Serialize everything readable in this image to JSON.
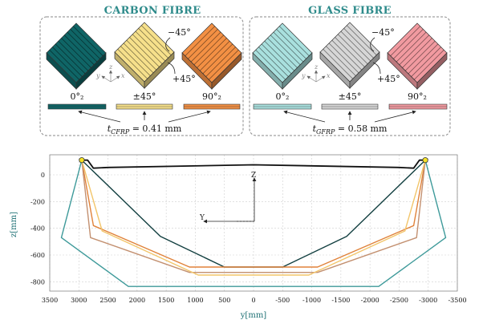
{
  "carbon": {
    "title": "CARBON FIBRE",
    "ply_labels": [
      "0°₂",
      "±45°",
      "90°₂"
    ],
    "angle_minus": "−45°",
    "angle_plus": "+45°",
    "thickness": "t",
    "thickness_sub": "CFRP",
    "thickness_value": " = 0.41 mm",
    "colors": [
      "#0f6566",
      "#f6e08b",
      "#f39044"
    ]
  },
  "glass": {
    "title": "GLASS FIBRE",
    "ply_labels": [
      "0°₂",
      "±45°",
      "90°₂"
    ],
    "angle_minus": "−45°",
    "angle_plus": "+45°",
    "thickness": "t",
    "thickness_sub": "GFRP",
    "thickness_value": " = 0.58 mm",
    "colors": [
      "#a9e0de",
      "#d6d6d6",
      "#f19aa0"
    ]
  },
  "triad": {
    "y": "y",
    "z": "z",
    "x": "x"
  },
  "plot_triad": {
    "z": "Z",
    "y": "Y"
  },
  "chart_data": {
    "type": "line",
    "xlabel": "y[mm]",
    "ylabel": "z[mm]",
    "xlim": [
      3500,
      -3500
    ],
    "ylim": [
      -870,
      150
    ],
    "x_ticks": [
      3500,
      3000,
      2500,
      2000,
      1500,
      1000,
      500,
      0,
      -500,
      -1000,
      -1500,
      -2000,
      -2500,
      -3000,
      -3500
    ],
    "y_ticks": [
      0,
      -200,
      -400,
      -600,
      -800
    ],
    "grid": true,
    "series": [
      {
        "color": "#111111",
        "points": [
          [
            2950,
            110
          ],
          [
            2850,
            110
          ],
          [
            2750,
            50
          ],
          [
            2500,
            55
          ],
          [
            0,
            75
          ],
          [
            -2500,
            55
          ],
          [
            -2750,
            50
          ],
          [
            -2850,
            110
          ],
          [
            -2950,
            110
          ]
        ]
      },
      {
        "color": "#3e9a9a",
        "points": [
          [
            2950,
            110
          ],
          [
            3300,
            -470
          ],
          [
            2150,
            -835
          ],
          [
            -2150,
            -835
          ],
          [
            -3300,
            -470
          ],
          [
            -2950,
            110
          ]
        ]
      },
      {
        "color": "#123f40",
        "points": [
          [
            2950,
            110
          ],
          [
            1600,
            -460
          ],
          [
            500,
            -690
          ],
          [
            -500,
            -690
          ],
          [
            -1600,
            -460
          ],
          [
            -2950,
            110
          ]
        ]
      },
      {
        "color": "#e0823a",
        "points": [
          [
            2950,
            110
          ],
          [
            2750,
            -380
          ],
          [
            1100,
            -690
          ],
          [
            -1100,
            -690
          ],
          [
            -2750,
            -380
          ],
          [
            -2950,
            110
          ]
        ]
      },
      {
        "color": "#c39070",
        "points": [
          [
            2950,
            110
          ],
          [
            2800,
            -470
          ],
          [
            1100,
            -730
          ],
          [
            -1100,
            -730
          ],
          [
            -2800,
            -470
          ],
          [
            -2950,
            110
          ]
        ]
      },
      {
        "color": "#f2c56a",
        "points": [
          [
            2950,
            110
          ],
          [
            2600,
            -420
          ],
          [
            950,
            -750
          ],
          [
            -950,
            -750
          ],
          [
            -2600,
            -420
          ],
          [
            -2950,
            110
          ]
        ]
      }
    ],
    "markers": [
      [
        2950,
        110
      ],
      [
        -2950,
        110
      ]
    ]
  }
}
